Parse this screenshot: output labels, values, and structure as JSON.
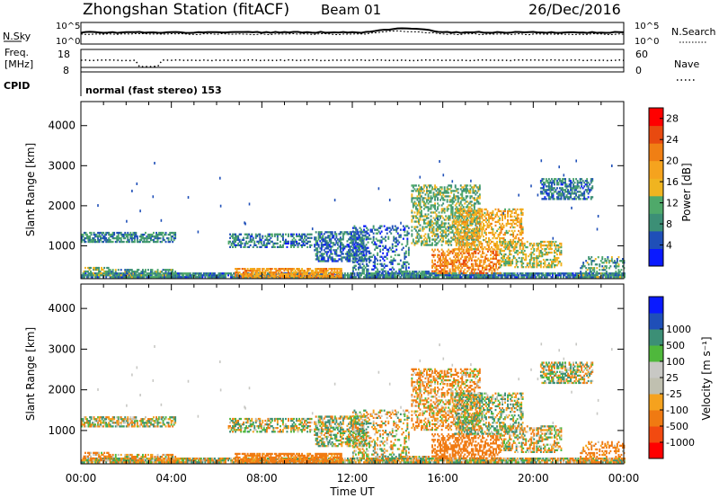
{
  "header": {
    "station_title": "Zhongshan Station (fitACF)",
    "beam": "Beam 01",
    "date": "26/Dec/2016"
  },
  "noise_panel": {
    "left_label": "N.Sky",
    "left_ticks": [
      "10^5",
      "10^0"
    ],
    "right_ticks": [
      "10^5",
      "10^0"
    ],
    "right_label": "N.Search"
  },
  "freq_panel": {
    "left_label_line1": "Freq.",
    "left_label_line2": "[MHz]",
    "left_ticks": [
      "18",
      "8"
    ],
    "right_ticks": [
      "60",
      "0"
    ],
    "right_label": "Nave"
  },
  "cpid": {
    "label": "CPID",
    "value": "normal (fast stereo) 153"
  },
  "x_axis": {
    "label": "Time UT",
    "ticks": [
      "00:00",
      "04:00",
      "08:00",
      "12:00",
      "16:00",
      "20:00",
      "00:00"
    ]
  },
  "colors": {
    "power": [
      "#0a1aff",
      "#1f4fb8",
      "#3c8f76",
      "#4fa96a",
      "#f0b420",
      "#f5a31e",
      "#f07f14",
      "#e84a10",
      "#ff0000"
    ],
    "velocity": [
      "#ff0000",
      "#f24a10",
      "#f07a12",
      "#f5a21e",
      "#c0c0b0",
      "#c8c8c4",
      "#4fb83c",
      "#3c8f76",
      "#1f4fb8",
      "#0a1aff"
    ]
  },
  "chart_data": [
    {
      "type": "heatmap",
      "name": "power",
      "xlim": [
        0,
        24
      ],
      "ylim": [
        180,
        4600
      ],
      "ylabel": "Slant Range [km]",
      "y_ticks": [
        "1000",
        "2000",
        "3000",
        "4000"
      ],
      "colorbar": {
        "label": "Power [dB]",
        "ticks": [
          "4",
          "8",
          "12",
          "16",
          "20",
          "24",
          "28"
        ],
        "range": [
          0,
          30
        ]
      }
    },
    {
      "type": "heatmap",
      "name": "velocity",
      "xlim": [
        0,
        24
      ],
      "ylim": [
        180,
        4600
      ],
      "ylabel": "Slant Range [km]",
      "y_ticks": [
        "1000",
        "2000",
        "3000",
        "4000"
      ],
      "colorbar": {
        "label": "Velocity [m s⁻¹]",
        "ticks": [
          "-1000",
          "-500",
          "-100",
          "-25",
          "25",
          "100",
          "500",
          "1000"
        ]
      }
    }
  ]
}
